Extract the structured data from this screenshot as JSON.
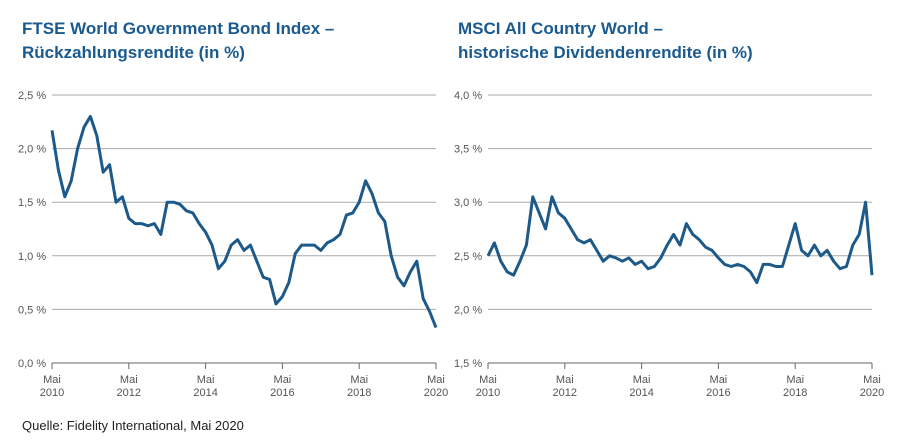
{
  "chart_data": [
    {
      "type": "line",
      "title": "FTSE World Government Bond Index –",
      "subtitle": "Rückzahlungsrendite (in %)",
      "x": [
        "2010-05",
        "2010-07",
        "2010-09",
        "2010-11",
        "2011-01",
        "2011-03",
        "2011-05",
        "2011-07",
        "2011-09",
        "2011-11",
        "2012-01",
        "2012-03",
        "2012-05",
        "2012-07",
        "2012-09",
        "2012-11",
        "2013-01",
        "2013-03",
        "2013-05",
        "2013-07",
        "2013-09",
        "2013-11",
        "2014-01",
        "2014-03",
        "2014-05",
        "2014-07",
        "2014-09",
        "2014-11",
        "2015-01",
        "2015-03",
        "2015-05",
        "2015-07",
        "2015-09",
        "2015-11",
        "2016-01",
        "2016-03",
        "2016-05",
        "2016-07",
        "2016-09",
        "2016-11",
        "2017-01",
        "2017-03",
        "2017-05",
        "2017-07",
        "2017-09",
        "2017-11",
        "2018-01",
        "2018-03",
        "2018-05",
        "2018-07",
        "2018-09",
        "2018-11",
        "2019-01",
        "2019-03",
        "2019-05",
        "2019-07",
        "2019-09",
        "2019-11",
        "2020-01",
        "2020-03",
        "2020-05"
      ],
      "series": [
        {
          "color": "#1d5a8a",
          "values": [
            2.17,
            1.8,
            1.55,
            1.7,
            2.0,
            2.2,
            2.3,
            2.12,
            1.78,
            1.85,
            1.5,
            1.55,
            1.35,
            1.3,
            1.3,
            1.28,
            1.3,
            1.2,
            1.5,
            1.5,
            1.48,
            1.42,
            1.4,
            1.3,
            1.22,
            1.1,
            0.88,
            0.95,
            1.1,
            1.15,
            1.05,
            1.1,
            0.95,
            0.8,
            0.78,
            0.55,
            0.62,
            0.75,
            1.02,
            1.1,
            1.1,
            1.1,
            1.05,
            1.12,
            1.15,
            1.2,
            1.38,
            1.4,
            1.5,
            1.7,
            1.58,
            1.4,
            1.32,
            1.0,
            0.8,
            0.72,
            0.85,
            0.95,
            0.6,
            0.48,
            0.33
          ]
        }
      ],
      "xlim": [
        "2010-05",
        "2020-05"
      ],
      "xticks": [
        {
          "value": "2010-05",
          "label": "Mai 2010"
        },
        {
          "value": "2012-05",
          "label": "Mai 2012"
        },
        {
          "value": "2014-05",
          "label": "Mai 2014"
        },
        {
          "value": "2016-05",
          "label": "Mai 2016"
        },
        {
          "value": "2018-05",
          "label": "Mai 2018"
        },
        {
          "value": "2020-05",
          "label": "Mai 2020"
        }
      ],
      "ylim": [
        0,
        2.5
      ],
      "yticks": [
        {
          "value": 0,
          "label": "0,0 %"
        },
        {
          "value": 0.5,
          "label": "0,5 %"
        },
        {
          "value": 1.0,
          "label": "1,0 %"
        },
        {
          "value": 1.5,
          "label": "1,5 %"
        },
        {
          "value": 2.0,
          "label": "2,0 %"
        },
        {
          "value": 2.5,
          "label": "2,5 %"
        }
      ],
      "grid": true
    },
    {
      "type": "line",
      "title": "MSCI All Country World –",
      "subtitle": "historische Dividendenrendite (in %)",
      "x": [
        "2010-05",
        "2010-07",
        "2010-09",
        "2010-11",
        "2011-01",
        "2011-03",
        "2011-05",
        "2011-07",
        "2011-09",
        "2011-11",
        "2012-01",
        "2012-03",
        "2012-05",
        "2012-07",
        "2012-09",
        "2012-11",
        "2013-01",
        "2013-03",
        "2013-05",
        "2013-07",
        "2013-09",
        "2013-11",
        "2014-01",
        "2014-03",
        "2014-05",
        "2014-07",
        "2014-09",
        "2014-11",
        "2015-01",
        "2015-03",
        "2015-05",
        "2015-07",
        "2015-09",
        "2015-11",
        "2016-01",
        "2016-03",
        "2016-05",
        "2016-07",
        "2016-09",
        "2016-11",
        "2017-01",
        "2017-03",
        "2017-05",
        "2017-07",
        "2017-09",
        "2017-11",
        "2018-01",
        "2018-03",
        "2018-05",
        "2018-07",
        "2018-09",
        "2018-11",
        "2019-01",
        "2019-03",
        "2019-05",
        "2019-07",
        "2019-09",
        "2019-11",
        "2020-01",
        "2020-03",
        "2020-05"
      ],
      "series": [
        {
          "color": "#1d5a8a",
          "values": [
            2.5,
            2.62,
            2.45,
            2.35,
            2.32,
            2.45,
            2.6,
            3.05,
            2.9,
            2.75,
            3.05,
            2.9,
            2.85,
            2.75,
            2.65,
            2.62,
            2.65,
            2.55,
            2.45,
            2.5,
            2.48,
            2.45,
            2.48,
            2.42,
            2.45,
            2.38,
            2.4,
            2.48,
            2.6,
            2.7,
            2.6,
            2.8,
            2.7,
            2.65,
            2.58,
            2.55,
            2.48,
            2.42,
            2.4,
            2.42,
            2.4,
            2.35,
            2.25,
            2.42,
            2.42,
            2.4,
            2.4,
            2.6,
            2.8,
            2.55,
            2.5,
            2.6,
            2.5,
            2.55,
            2.45,
            2.38,
            2.4,
            2.6,
            2.7,
            3.0,
            2.32
          ]
        }
      ],
      "xlim": [
        "2010-05",
        "2020-05"
      ],
      "xticks": [
        {
          "value": "2010-05",
          "label": "Mai 2010"
        },
        {
          "value": "2012-05",
          "label": "Mai 2012"
        },
        {
          "value": "2014-05",
          "label": "Mai 2014"
        },
        {
          "value": "2016-05",
          "label": "Mai 2016"
        },
        {
          "value": "2018-05",
          "label": "Mai 2018"
        },
        {
          "value": "2020-05",
          "label": "Mai 2020"
        }
      ],
      "ylim": [
        1.5,
        4.0
      ],
      "yticks": [
        {
          "value": 1.5,
          "label": "1,5 %"
        },
        {
          "value": 2.0,
          "label": "2,0 %"
        },
        {
          "value": 2.5,
          "label": "2,5 %"
        },
        {
          "value": 3.0,
          "label": "3,0 %"
        },
        {
          "value": 3.5,
          "label": "3,5 %"
        },
        {
          "value": 4.0,
          "label": "4,0 %"
        }
      ],
      "grid": true
    }
  ],
  "source": "Quelle: Fidelity International, Mai 2020"
}
